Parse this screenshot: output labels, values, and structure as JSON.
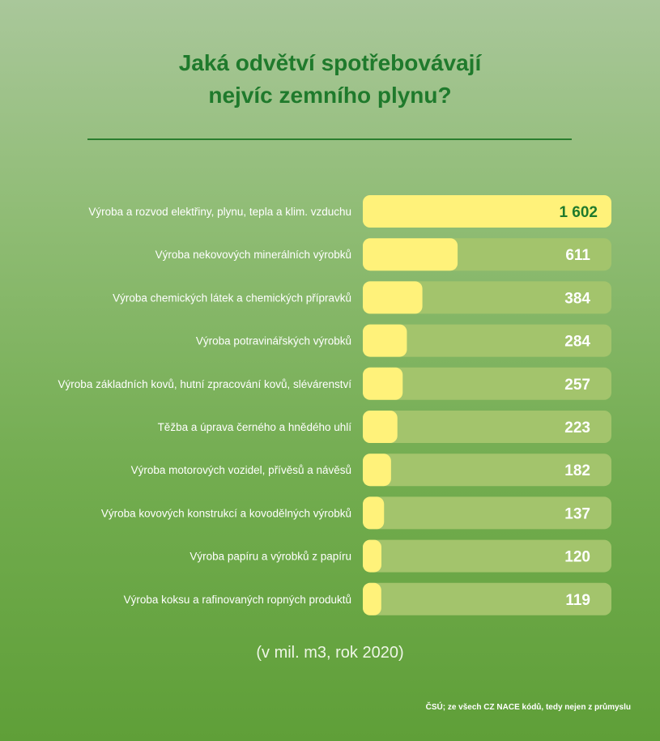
{
  "title_line1": "Jaká odvětví spotřebovávají",
  "title_line2": "nejvíc zemního plynu?",
  "unit_note": "(v mil. m3, rok 2020)",
  "source": "ČSÚ; ze všech CZ NACE kódů, tedy nejen z průmyslu",
  "colors": {
    "bar_fill": "#fff27a",
    "bar_track": "#a3c46c",
    "title": "#1f7a2c",
    "label": "#ffffff",
    "first_value": "#1f7a2c"
  },
  "chart_data": {
    "type": "bar",
    "orientation": "horizontal",
    "title": "Jaká odvětví spotřebovávají nejvíc zemního plynu?",
    "xlim": [
      0,
      1602
    ],
    "categories": [
      "Výroba a rozvod elektřiny, plynu, tepla a klim. vzduchu",
      "Výroba nekovových minerálních výrobků",
      "Výroba chemických látek a chemických přípravků",
      "Výroba potravinářských výrobků",
      "Výroba základních kovů, hutní zpracování kovů, slévárenství",
      "Těžba a úprava černého a hnědého uhlí",
      "Výroba motorových vozidel, přívěsů a návěsů",
      "Výroba kovových konstrukcí a kovodělných výrobků",
      "Výroba papíru a výrobků z papíru",
      "Výroba koksu a rafinovaných ropných produktů"
    ],
    "values": [
      1602,
      611,
      384,
      284,
      257,
      223,
      182,
      137,
      120,
      119
    ],
    "value_labels": [
      "1 602",
      "611",
      "384",
      "284",
      "257",
      "223",
      "182",
      "137",
      "120",
      "119"
    ]
  }
}
